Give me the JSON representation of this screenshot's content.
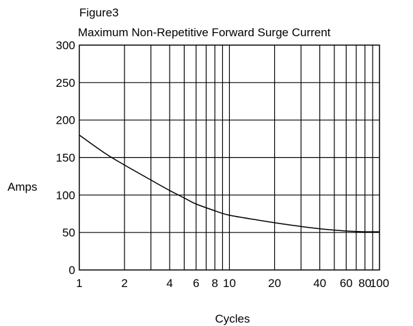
{
  "chart_data": {
    "type": "line",
    "title_line1": "Figure3",
    "title_line2": "Maximum Non-Repetitive Forward Surge Current",
    "xlabel": "Cycles",
    "ylabel": "Amps",
    "x_scale": "log",
    "xlim": [
      1,
      100
    ],
    "ylim": [
      0,
      300
    ],
    "x_tick_values": [
      1,
      2,
      4,
      6,
      8,
      10,
      20,
      40,
      60,
      80,
      100
    ],
    "x_tick_labels": [
      "1",
      "2",
      "4",
      "6",
      "8",
      "10",
      "20",
      "40",
      "60",
      "80",
      "100"
    ],
    "x_gridlines": [
      2,
      3,
      4,
      5,
      6,
      7,
      8,
      9,
      10,
      20,
      30,
      40,
      50,
      60,
      70,
      80,
      90
    ],
    "y_tick_values": [
      0,
      50,
      100,
      150,
      200,
      250,
      300
    ],
    "y_tick_labels": [
      "0",
      "50",
      "100",
      "150",
      "200",
      "250",
      "300"
    ],
    "grid": true,
    "series": [
      {
        "x": [
          1,
          1.5,
          2,
          3,
          4,
          5,
          6,
          8,
          10,
          15,
          20,
          30,
          40,
          60,
          80,
          100
        ],
        "y": [
          180,
          155,
          140,
          120,
          106,
          96,
          88,
          79,
          73,
          67,
          63,
          58,
          55,
          52,
          51,
          51
        ]
      }
    ]
  }
}
